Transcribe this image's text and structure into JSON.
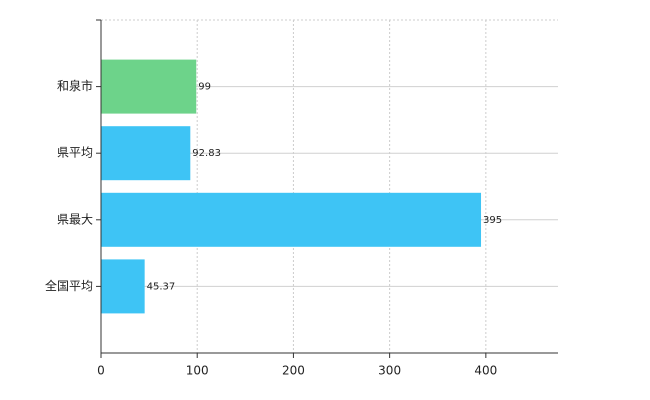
{
  "chart_data": {
    "type": "bar",
    "orientation": "horizontal",
    "categories": [
      "和泉市",
      "県平均",
      "県最大",
      "全国平均"
    ],
    "values": [
      99,
      92.83,
      395,
      45.37
    ],
    "colors": [
      "#6dd38a",
      "#3ec4f5",
      "#3ec4f5",
      "#3ec4f5"
    ],
    "xlim": [
      0,
      475
    ],
    "xticks": [
      0,
      100,
      200,
      300,
      400
    ],
    "grid": true
  }
}
